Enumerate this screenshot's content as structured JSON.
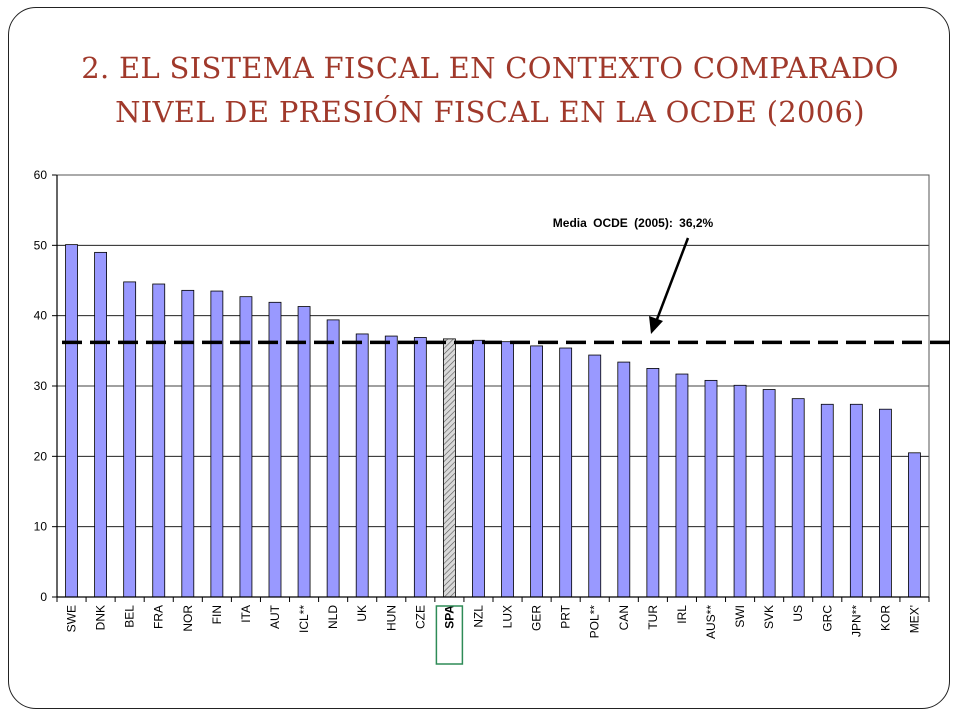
{
  "slide": {
    "title_line1": "2. EL SISTEMA FISCAL EN CONTEXTO COMPARADO",
    "title_line2": "NIVEL DE PRESIÓN FISCAL EN LA OCDE (2006)"
  },
  "colors": {
    "title": "#a0392b",
    "bar": "#9999ff",
    "highlight_bar": "#d9d9d9",
    "highlight_box": "#2e8b57",
    "reference_line": "#000000"
  },
  "chart_data": {
    "type": "bar",
    "title": "",
    "xlabel": "",
    "ylabel": "",
    "ylim": [
      0,
      60
    ],
    "yticks": [
      0,
      10,
      20,
      30,
      40,
      50,
      60
    ],
    "grid": true,
    "categories": [
      "SWE",
      "DNK",
      "BEL",
      "FRA",
      "NOR",
      "FIN",
      "ITA",
      "AUT",
      "ICL**",
      "NLD",
      "UK",
      "HUN",
      "CZE",
      "SPA",
      "NZL",
      "LUX",
      "GER",
      "PRT",
      "POL**",
      "CAN",
      "TUR",
      "IRL",
      "AUS**",
      "SWI",
      "SVK",
      "US",
      "GRC",
      "JPN**",
      "KOR",
      "MEX'"
    ],
    "values": [
      50.1,
      49.0,
      44.8,
      44.5,
      43.6,
      43.5,
      42.7,
      41.9,
      41.3,
      39.4,
      37.4,
      37.1,
      36.9,
      36.7,
      36.5,
      36.3,
      35.7,
      35.4,
      34.4,
      33.4,
      32.5,
      31.7,
      30.8,
      30.1,
      29.5,
      28.2,
      27.4,
      27.4,
      26.7,
      20.5
    ],
    "highlight": "SPA",
    "reference_line": {
      "value": 36.2,
      "label": "Media OCDE (2005): 36,2%"
    }
  }
}
